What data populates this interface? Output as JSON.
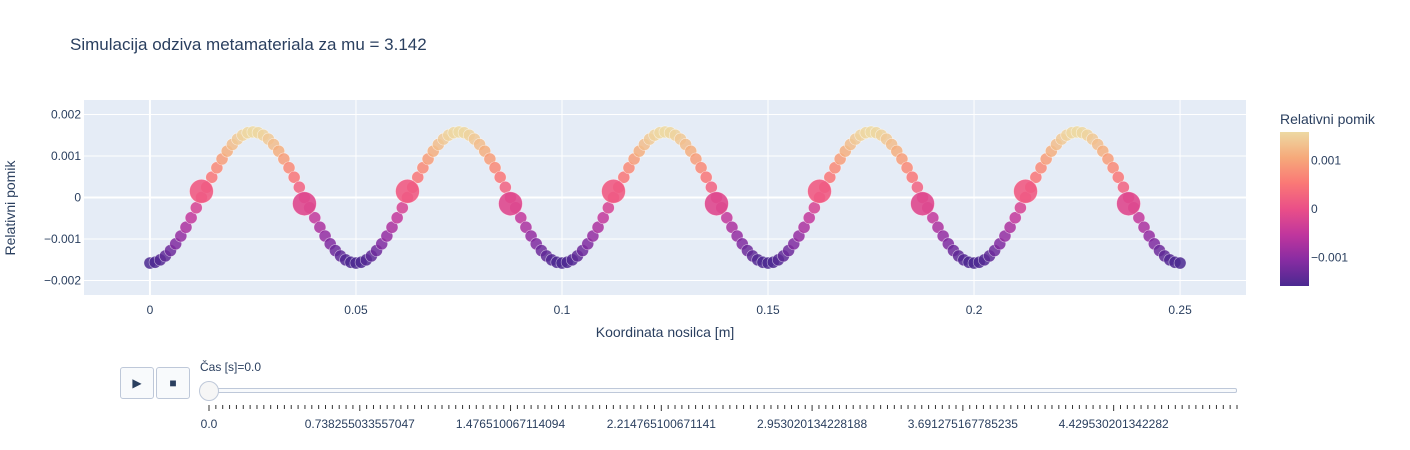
{
  "chart_data": {
    "type": "scatter",
    "title": "Simulacija odziva metamateriala za mu = 3.142",
    "xlabel": "Koordinata nosilca [m]",
    "ylabel": "Relativni pomik",
    "xlim": [
      -0.016,
      0.266
    ],
    "ylim": [
      -0.00235,
      0.00235
    ],
    "x_ticks": [
      {
        "value": 0,
        "label": "0"
      },
      {
        "value": 0.05,
        "label": "0.05"
      },
      {
        "value": 0.1,
        "label": "0.1"
      },
      {
        "value": 0.15,
        "label": "0.15"
      },
      {
        "value": 0.2,
        "label": "0.2"
      },
      {
        "value": 0.25,
        "label": "0.25"
      }
    ],
    "y_ticks": [
      {
        "value": 0.002,
        "label": "0.002"
      },
      {
        "value": 0.001,
        "label": "0.001"
      },
      {
        "value": 0,
        "label": "0"
      },
      {
        "value": -0.001,
        "label": "−0.001"
      },
      {
        "value": -0.002,
        "label": "−0.002"
      }
    ],
    "grid": true,
    "series": [
      {
        "marker": "small",
        "x_start": 0,
        "x_end": 0.25,
        "count": 201,
        "y_model": {
          "amplitude": 0.00158,
          "period": 0.05,
          "phase_shift": 0.025
        }
      },
      {
        "marker": "large",
        "x": [
          0.0125,
          0.0375,
          0.0625,
          0.0875,
          0.1125,
          0.1375,
          0.1625,
          0.1875,
          0.2125,
          0.2375
        ],
        "y": [
          0.00015,
          -0.00015,
          0.00015,
          -0.00015,
          0.00015,
          -0.00015,
          0.00015,
          -0.00015,
          0.00015,
          -0.00015
        ]
      }
    ],
    "colorscale": [
      "#0d0887",
      "#46039f",
      "#7201a8",
      "#9c179e",
      "#bd3786",
      "#d8576b",
      "#ed7953",
      "#fb9f3a",
      "#fdca26",
      "#f0f921"
    ],
    "colorscale_name": "Plasma-like (Agsunset)",
    "color_stops": [
      "#4b2991",
      "#872ca2",
      "#c0369d",
      "#ea4f88",
      "#fa7876",
      "#f6a97a",
      "#edd9a3"
    ],
    "colorbar": {
      "title": "Relativni pomik",
      "cmin": -0.00158,
      "cmax": 0.00158,
      "ticks": [
        {
          "value": 0.001,
          "label": "0.001"
        },
        {
          "value": 0,
          "label": "0"
        },
        {
          "value": -0.001,
          "label": "−0.001"
        }
      ]
    }
  },
  "controls": {
    "play_icon": "play-icon",
    "play_label": "▶",
    "stop_icon": "stop-icon",
    "stop_label": "■"
  },
  "slider": {
    "current_label": "Čas [s]=0.0",
    "value_fraction": 0,
    "tick_labels": [
      "0.0",
      "0.738255033557047",
      "1.476510067114094",
      "2.214765100671141",
      "2.953020134228188",
      "3.691275167785235",
      "4.429530201342282"
    ]
  }
}
